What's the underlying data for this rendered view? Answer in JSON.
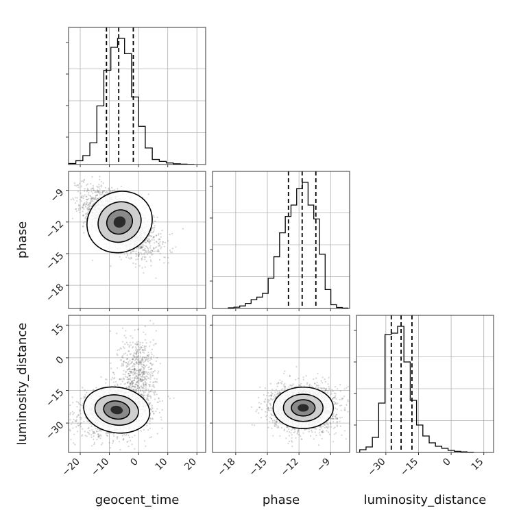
{
  "chart_data": {
    "type": "corner",
    "grid": true,
    "parameters": [
      "geocent_time",
      "phase",
      "luminosity_distance"
    ],
    "axis_labels": {
      "geocent_time": "geocent_time",
      "phase": "phase",
      "luminosity_distance": "luminosity_distance"
    },
    "ranges": {
      "geocent_time": [
        -24,
        23
      ],
      "phase": [
        -20.2,
        -7.2
      ],
      "luminosity_distance": [
        -43.5,
        19.5
      ]
    },
    "ticks": {
      "geocent_time": {
        "values": [
          -20,
          -10,
          0,
          10,
          20
        ],
        "labels": [
          "−20",
          "−10",
          "0",
          "10",
          "20"
        ]
      },
      "phase": {
        "values": [
          -18,
          -15,
          -12,
          -9
        ],
        "labels": [
          "−18",
          "−15",
          "−12",
          "−9"
        ]
      },
      "luminosity_distance": {
        "values": [
          -30,
          -15,
          0,
          15
        ],
        "labels": [
          "−30",
          "−15",
          "0",
          "15"
        ]
      }
    },
    "quantiles": {
      "geocent_time": [
        -11.0,
        -6.8,
        -1.8
      ],
      "phase": [
        -13.0,
        -11.7,
        -10.4
      ],
      "luminosity_distance": [
        -27.5,
        -23.0,
        -18.0
      ]
    },
    "marginals": {
      "geocent_time": {
        "bin_edges": [
          -24,
          -21.5,
          -19.1,
          -16.7,
          -14.3,
          -11.9,
          -9.5,
          -7.2,
          -4.8,
          -2.4,
          0,
          2.3,
          4.7,
          7.1,
          9.5,
          11.9,
          14.3,
          16.6,
          19
        ],
        "counts": [
          0.008,
          0.03,
          0.07,
          0.17,
          0.46,
          0.74,
          0.92,
          0.99,
          0.87,
          0.53,
          0.3,
          0.13,
          0.04,
          0.025,
          0.012,
          0.006,
          0.003,
          0.001
        ]
      },
      "phase": {
        "bin_edges": [
          -18.7,
          -18.16,
          -17.62,
          -17.08,
          -16.54,
          -16.0,
          -15.46,
          -14.92,
          -14.38,
          -13.84,
          -13.3,
          -12.76,
          -12.22,
          -11.68,
          -11.14,
          -10.6,
          -10.06,
          -9.52,
          -8.98,
          -8.44,
          -7.9,
          -7.36
        ],
        "counts": [
          0.005,
          0.01,
          0.02,
          0.04,
          0.07,
          0.09,
          0.12,
          0.24,
          0.41,
          0.6,
          0.73,
          0.82,
          0.95,
          1.0,
          0.82,
          0.71,
          0.43,
          0.15,
          0.03,
          0.008,
          0.003
        ]
      },
      "luminosity_distance": {
        "bin_edges": [
          -42,
          -39.1,
          -36.2,
          -33.3,
          -30.4,
          -27.5,
          -24.6,
          -21.7,
          -18.8,
          -15.9,
          -13.0,
          -10.1,
          -7.2,
          -4.3,
          -1.4,
          1.5,
          4.4,
          7.3,
          10.2
        ],
        "counts": [
          0.02,
          0.04,
          0.11,
          0.36,
          0.86,
          0.87,
          0.92,
          0.66,
          0.38,
          0.2,
          0.12,
          0.07,
          0.045,
          0.03,
          0.015,
          0.008,
          0.004,
          0.002
        ]
      }
    },
    "joint_2d": [
      {
        "x": "geocent_time",
        "y": "phase",
        "mean": [
          -6.5,
          -12.0
        ],
        "std": [
          6.0,
          1.5
        ],
        "corr": -0.6,
        "n_samples": 2600
      },
      {
        "x": "geocent_time",
        "y": "luminosity_distance",
        "mean": [
          -7.5,
          -24.0
        ],
        "std": [
          6.0,
          5.5
        ],
        "corr": 0.2,
        "n_samples": 2000,
        "tail": {
          "mean": [
            0.0,
            -5.0
          ],
          "std": [
            3.0,
            8.0
          ],
          "n_samples": 500
        }
      },
      {
        "x": "phase",
        "y": "luminosity_distance",
        "mean": [
          -11.6,
          -23.0
        ],
        "std": [
          1.5,
          5.0
        ],
        "corr": 0.0,
        "n_samples": 2600
      }
    ]
  }
}
